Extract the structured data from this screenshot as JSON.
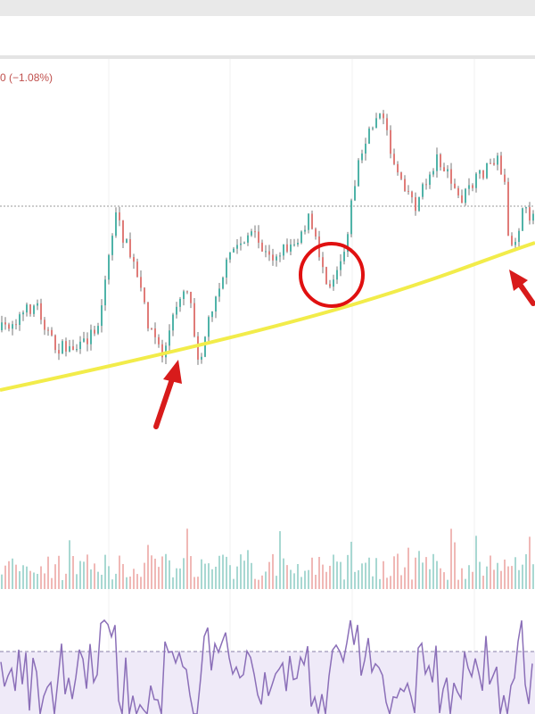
{
  "header": {
    "change": "0 (−1.08%)"
  }
}
